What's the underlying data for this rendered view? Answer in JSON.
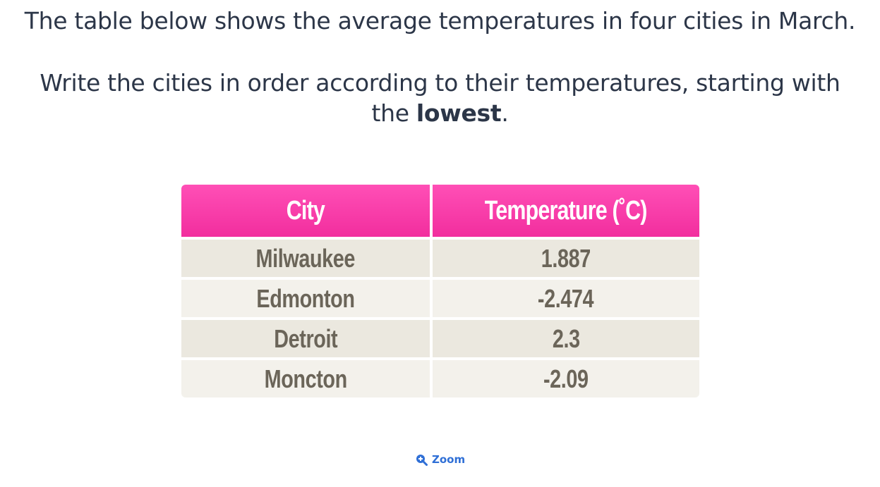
{
  "question": {
    "line1": "The table below shows the average temperatures in four cities in March.",
    "line2": "Write the cities in order according to their temperatures, starting with",
    "line3_prefix": "the ",
    "line3_bold": "lowest",
    "line3_suffix": "."
  },
  "table": {
    "headers": [
      "City",
      "Temperature (˚C)"
    ],
    "rows": [
      {
        "city": "Milwaukee",
        "temperature": "1.887"
      },
      {
        "city": "Edmonton",
        "temperature": "-2.474"
      },
      {
        "city": "Detroit",
        "temperature": "2.3"
      },
      {
        "city": "Moncton",
        "temperature": "-2.09"
      }
    ],
    "colors": {
      "header": "#f22e9e",
      "row_odd": "#ebe8df",
      "row_even": "#f3f1eb",
      "body_text": "#6b6559"
    }
  },
  "zoom": {
    "label": "Zoom",
    "icon": "zoom-in-icon",
    "color": "#2f6fd6"
  }
}
